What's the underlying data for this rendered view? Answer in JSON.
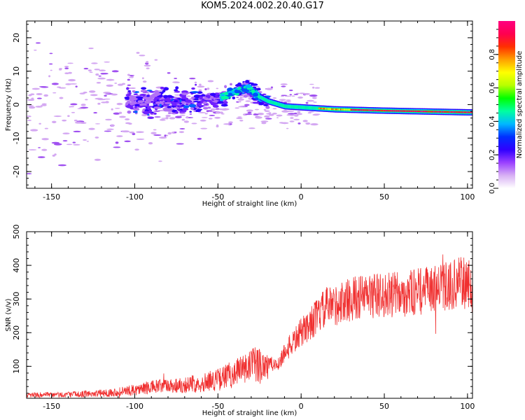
{
  "title": "KOM5.2024.002.20.40.G17",
  "colors": {
    "snr_line": "#f03030",
    "axes": "#000000"
  },
  "colormap": [
    "#ffffff",
    "#d8b0f4",
    "#9a40ff",
    "#3000ff",
    "#0030ff",
    "#00b8ff",
    "#00ffa0",
    "#00ff00",
    "#b8ff00",
    "#ffff00",
    "#ffa000",
    "#ff3000",
    "#ff0050",
    "#ff0080"
  ],
  "chart_data": [
    {
      "type": "heatmap",
      "xlabel": "Height of straight line (km)",
      "ylabel": "Frequency (Hz)",
      "xlim": [
        -165,
        103
      ],
      "ylim": [
        -25,
        25
      ],
      "xticks": [
        -150,
        -100,
        -50,
        0,
        50,
        100
      ],
      "yticks": [
        -20,
        -10,
        0,
        10,
        20
      ],
      "colorbar": {
        "label": "Normalized spectral amplitude",
        "range": [
          0,
          1
        ],
        "ticks": [
          0.0,
          0.2,
          0.4,
          0.6,
          0.8
        ]
      },
      "ridge": [
        {
          "x": -95,
          "freq": 0.5
        },
        {
          "x": -70,
          "freq": 1.0
        },
        {
          "x": -50,
          "freq": 1.5
        },
        {
          "x": -40,
          "freq": 4.0
        },
        {
          "x": -32,
          "freq": 5.0
        },
        {
          "x": -26,
          "freq": 2.5
        },
        {
          "x": -20,
          "freq": 1.0
        },
        {
          "x": -10,
          "freq": -0.5
        },
        {
          "x": 0,
          "freq": -0.8
        },
        {
          "x": 20,
          "freq": -1.4
        },
        {
          "x": 50,
          "freq": -1.8
        },
        {
          "x": 80,
          "freq": -2.1
        },
        {
          "x": 100,
          "freq": -2.3
        }
      ]
    },
    {
      "type": "line",
      "xlabel": "Height of straight line (km)",
      "ylabel": "SNR (v/v)",
      "xlim": [
        -165,
        103
      ],
      "ylim": [
        5,
        500
      ],
      "xticks": [
        -150,
        -100,
        -50,
        0,
        50,
        100
      ],
      "yticks": [
        100,
        200,
        300,
        400,
        500
      ],
      "series": [
        {
          "x": [
            -165,
            -150,
            -140,
            -130,
            -120,
            -110,
            -100,
            -90,
            -80,
            -70,
            -60,
            -50,
            -40,
            -30,
            -20,
            -15,
            -10,
            -5,
            0,
            5,
            10,
            15,
            20,
            25,
            30,
            40,
            50,
            60,
            70,
            80,
            90,
            95,
            100,
            103
          ],
          "values": [
            15,
            15,
            16,
            18,
            20,
            24,
            30,
            38,
            42,
            45,
            50,
            60,
            80,
            100,
            110,
            100,
            140,
            170,
            200,
            225,
            250,
            275,
            280,
            290,
            300,
            310,
            310,
            315,
            320,
            330,
            340,
            350,
            345,
            330
          ]
        }
      ]
    }
  ]
}
